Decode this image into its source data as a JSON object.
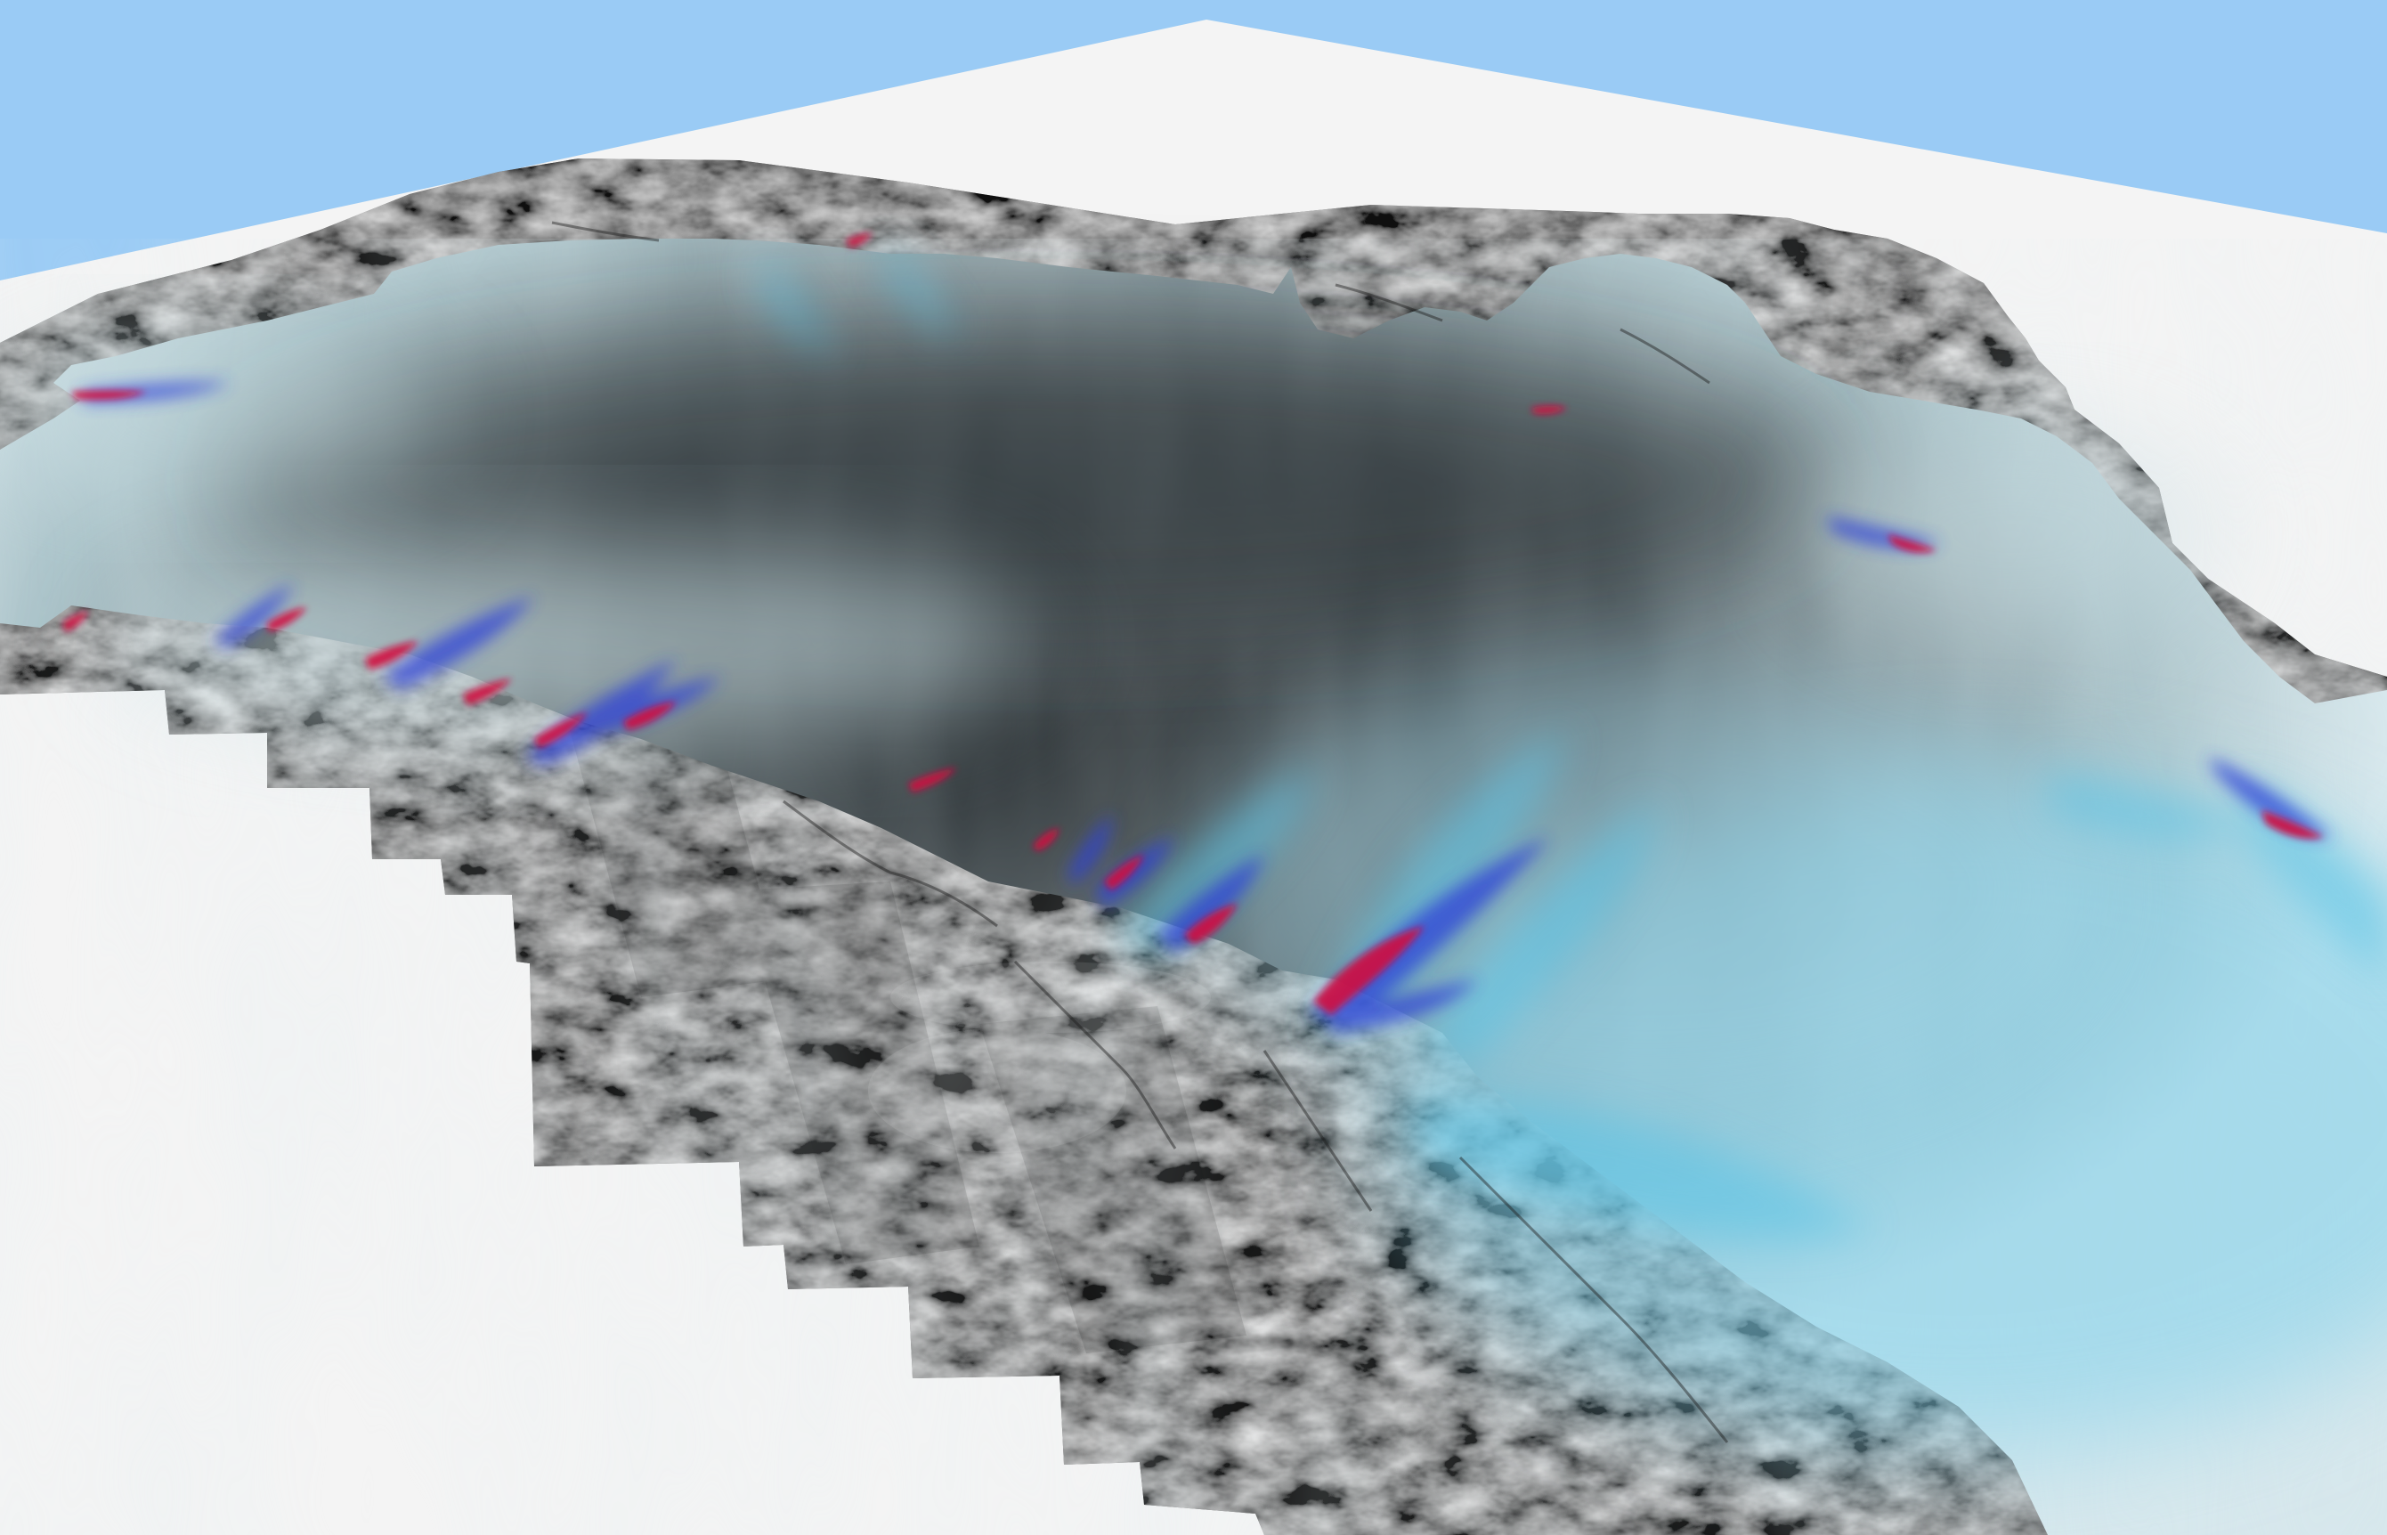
{
  "scene": {
    "view": "3d-perspective",
    "subject": "ice-sheet-surface-velocity",
    "colors": {
      "sky": "#9acbf5",
      "ground_plane": "#f4f4f4",
      "rock": "#5a5a5a",
      "ice_interior": "#3e4649",
      "ice_margin": "#cfe1e6",
      "flow_slow": "#5cc5e6",
      "flow_medium": "#2f43d8",
      "flow_fast": "#d01040"
    },
    "layers": [
      {
        "id": "grayscale-imagery-mosaic"
      },
      {
        "id": "ice-surface-shading"
      },
      {
        "id": "velocity-overlay"
      }
    ]
  }
}
